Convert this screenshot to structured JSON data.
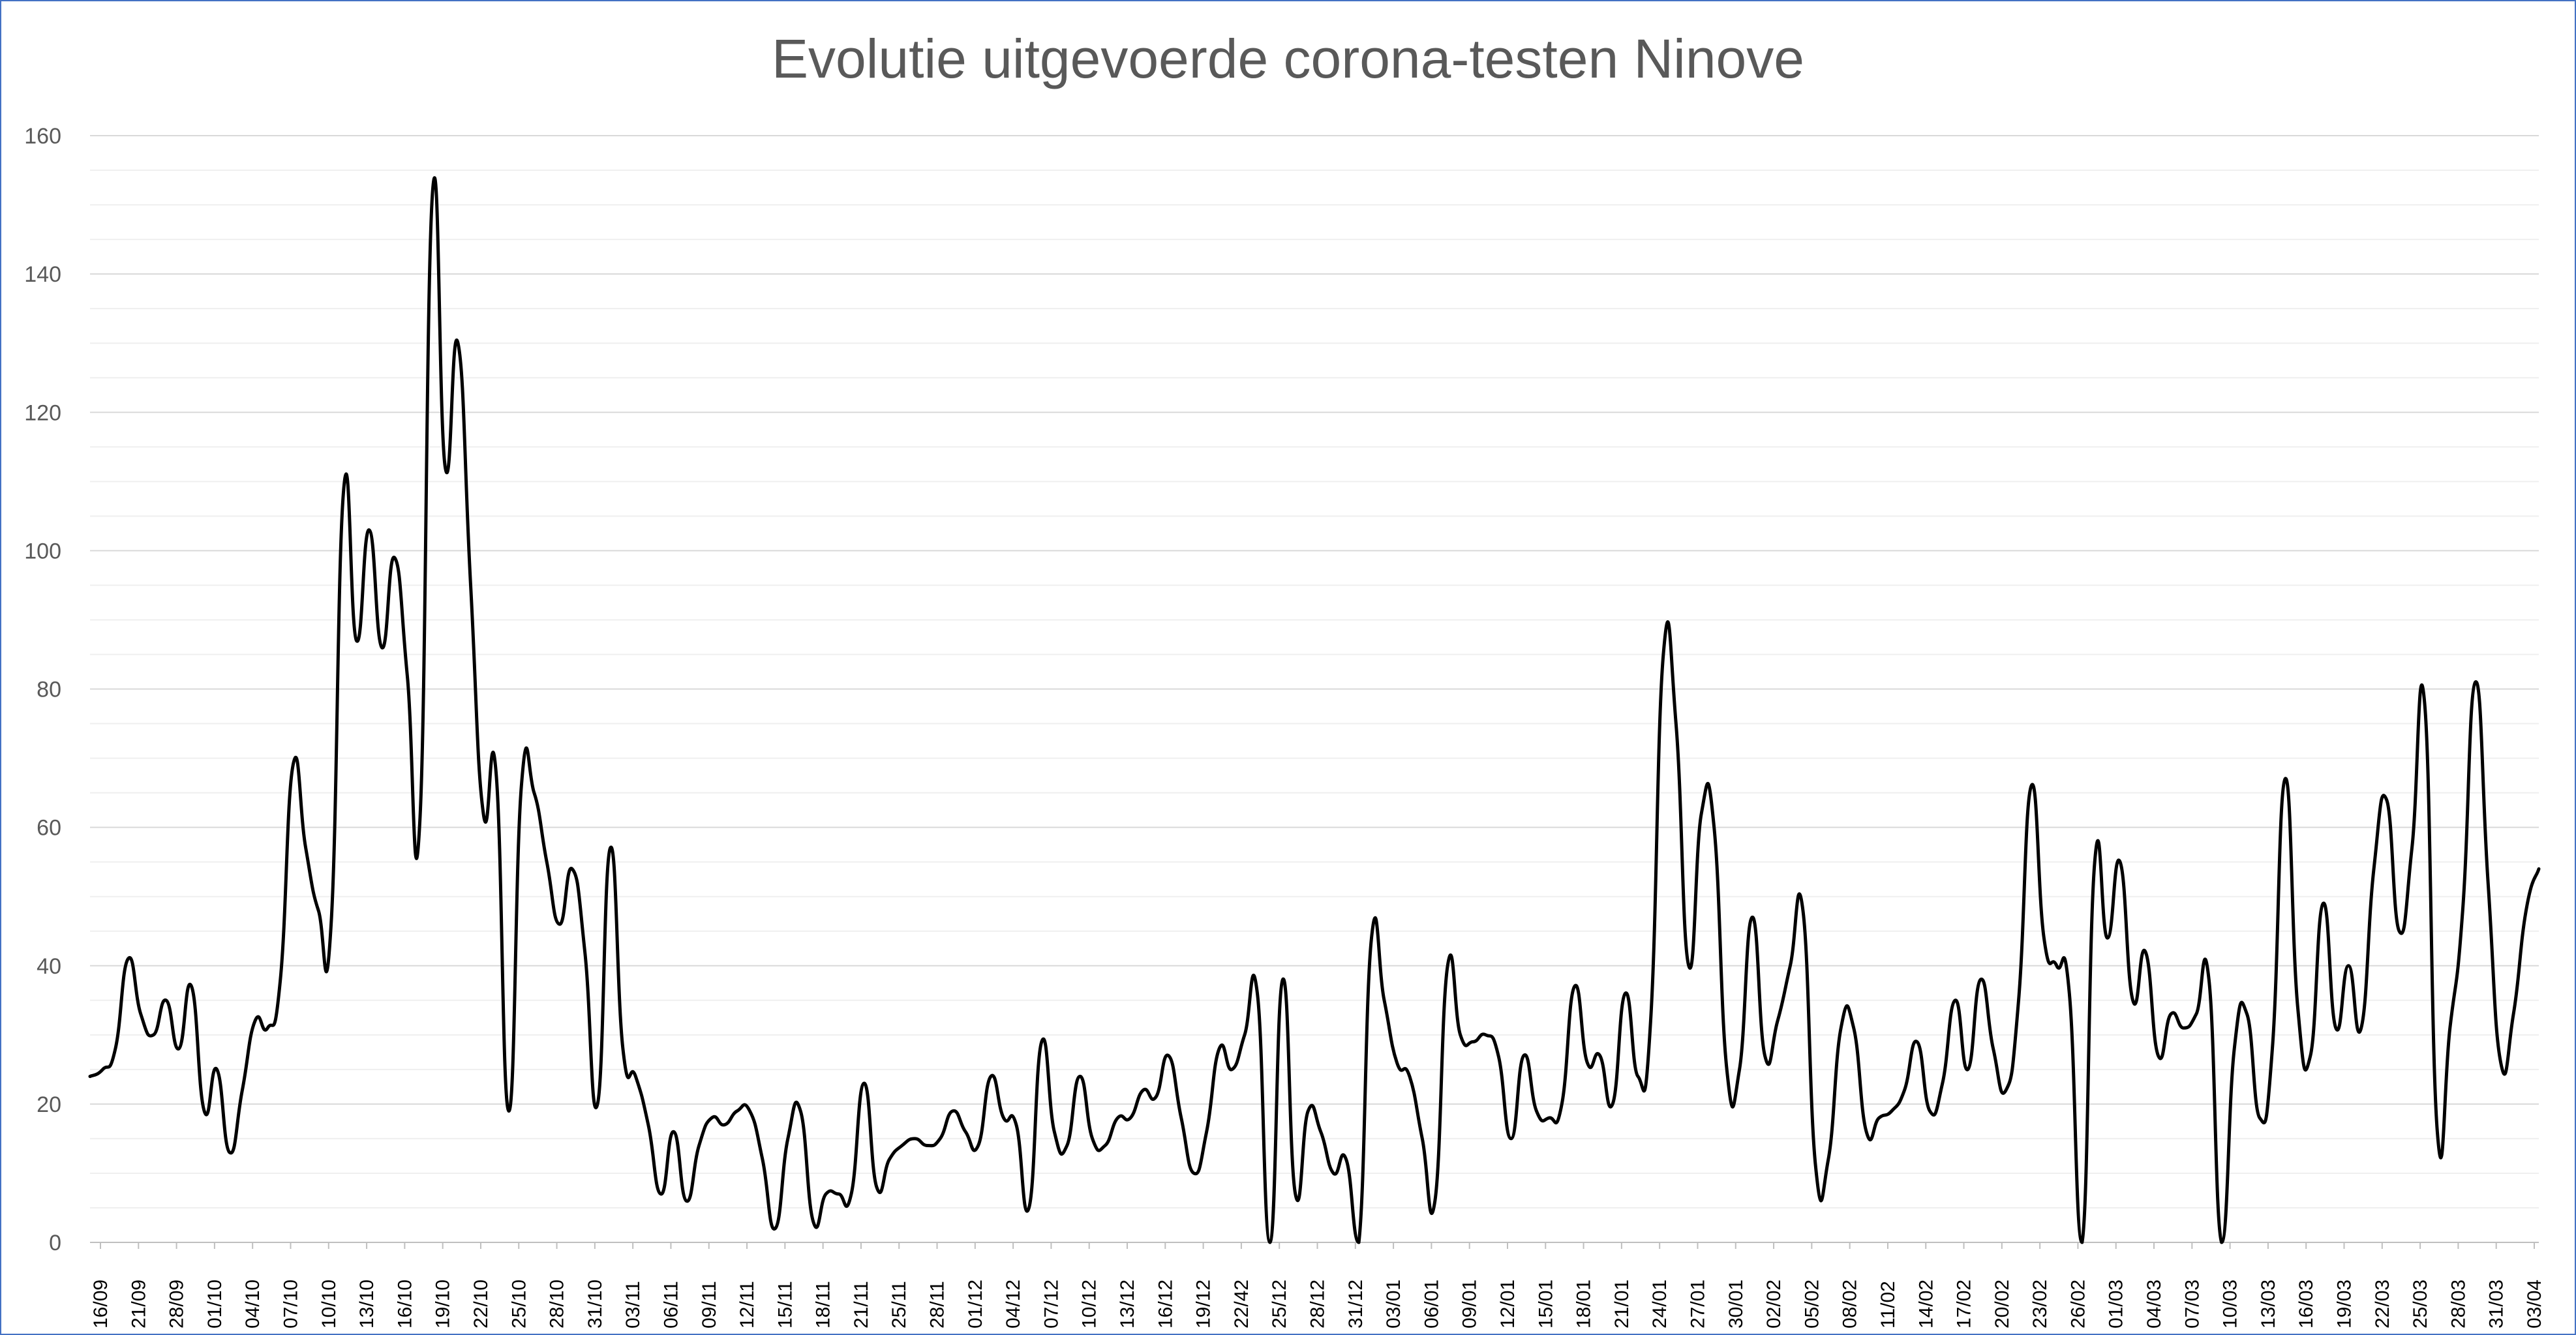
{
  "chart_data": {
    "type": "line",
    "title": "Evolutie uitgevoerde corona-testen Ninove",
    "xlabel": "",
    "ylabel": "",
    "ylim": [
      0,
      160
    ],
    "yticks": [
      0,
      20,
      40,
      60,
      80,
      100,
      120,
      140,
      160
    ],
    "grid": true,
    "legend": "none",
    "line_color": "#000000",
    "x_tick_labels": [
      "16/09",
      "21/09",
      "28/09",
      "01/10",
      "04/10",
      "07/10",
      "10/10",
      "13/10",
      "16/10",
      "19/10",
      "22/10",
      "25/10",
      "28/10",
      "31/10",
      "03/11",
      "06/11",
      "09/11",
      "12/11",
      "15/11",
      "18/11",
      "21/11",
      "25/11",
      "28/11",
      "01/12",
      "04/12",
      "07/12",
      "10/12",
      "13/12",
      "16/12",
      "19/12",
      "22/42",
      "25/12",
      "28/12",
      "31/12",
      "03/01",
      "06/01",
      "09/01",
      "12/01",
      "15/01",
      "18/01",
      "21/01",
      "24/01",
      "27/01",
      "30/01",
      "02/02",
      "05/02",
      "08/02",
      "11/02",
      "14/02",
      "17/02",
      "20/02",
      "23/02",
      "26/02",
      "01/03",
      "04/03",
      "07/03",
      "10/03",
      "13/03",
      "16/03",
      "19/03",
      "22/03",
      "25/03",
      "28/03",
      "31/03",
      "03/04"
    ],
    "series": [
      {
        "values": [
          24,
          25,
          28,
          41,
          33,
          30,
          35,
          28,
          37,
          19,
          25,
          13,
          22,
          32,
          31,
          38,
          69,
          57,
          48,
          46,
          109,
          87,
          103,
          86,
          99,
          82,
          61,
          152,
          112,
          130,
          95,
          62,
          68,
          19,
          66,
          65,
          55,
          46,
          54,
          42,
          20,
          57,
          28,
          24,
          17,
          7,
          16,
          6,
          14,
          18,
          17,
          19,
          19,
          12,
          2,
          15,
          19,
          3,
          7,
          7,
          7,
          23,
          8,
          12,
          14,
          15,
          14,
          15,
          19,
          16,
          14,
          24,
          18,
          17,
          5,
          29,
          16,
          14,
          24,
          15,
          14,
          18,
          18,
          22,
          21,
          27,
          18,
          10,
          16,
          28,
          25,
          30,
          36,
          0,
          38,
          7,
          19,
          16,
          10,
          12,
          0,
          44,
          35,
          26,
          24,
          15,
          6,
          40,
          30,
          29,
          30,
          27,
          15,
          27,
          19,
          18,
          20,
          37,
          26,
          27,
          20,
          36,
          24,
          32,
          85,
          75,
          40,
          62,
          60,
          25,
          25,
          47,
          27,
          32,
          40,
          48,
          11,
          12,
          31,
          31,
          16,
          18,
          19,
          22,
          29,
          19,
          23,
          35,
          25,
          38,
          28,
          22,
          35,
          66,
          44,
          40,
          36,
          0,
          55,
          44,
          55,
          35,
          42,
          27,
          33,
          31,
          33,
          38,
          0,
          28,
          33,
          18,
          28,
          67,
          34,
          27,
          49,
          31,
          40,
          31,
          54,
          64,
          45,
          57,
          78,
          16,
          31,
          48,
          81,
          52,
          26,
          33,
          48,
          54
        ]
      }
    ]
  }
}
